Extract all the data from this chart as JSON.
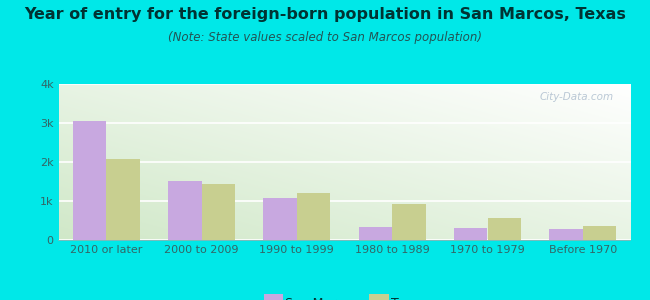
{
  "title": "Year of entry for the foreign-born population in San Marcos, Texas",
  "subtitle": "(Note: State values scaled to San Marcos population)",
  "categories": [
    "2010 or later",
    "2000 to 2009",
    "1990 to 1999",
    "1980 to 1989",
    "1970 to 1979",
    "Before 1970"
  ],
  "san_marcos_values": [
    3050,
    1520,
    1080,
    330,
    310,
    270
  ],
  "texas_values": [
    2080,
    1440,
    1200,
    920,
    570,
    370
  ],
  "san_marcos_color": "#c8a8e0",
  "texas_color": "#c8cf90",
  "background_outer": "#00e8e8",
  "background_inner_bottom": "#d0e8c8",
  "background_inner_top": "#f5faf5",
  "ylim": [
    0,
    4000
  ],
  "yticks": [
    0,
    1000,
    2000,
    3000,
    4000
  ],
  "ytick_labels": [
    "0",
    "1k",
    "2k",
    "3k",
    "4k"
  ],
  "legend_labels": [
    "San Marcos",
    "Texas"
  ],
  "title_fontsize": 11.5,
  "subtitle_fontsize": 8.5,
  "tick_fontsize": 8,
  "legend_fontsize": 9,
  "bar_width": 0.35,
  "watermark": "City-Data.com"
}
